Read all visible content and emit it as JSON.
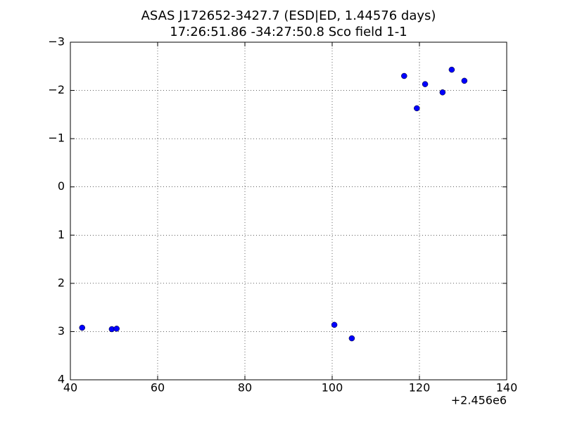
{
  "chart_data": {
    "type": "scatter",
    "title": "ASAS J172652-3427.7 (ESD|ED, 1.44576 days)",
    "subtitle": "17:26:51.86 -34:27:50.8 Sco field 1-1",
    "x_offset_label": "+2.456e6",
    "x": [
      42.7,
      49.5,
      50.6,
      100.5,
      104.5,
      116.5,
      119.4,
      121.3,
      125.3,
      127.4,
      130.3
    ],
    "values": [
      2.92,
      2.95,
      2.94,
      2.86,
      3.14,
      -2.3,
      -1.63,
      -2.13,
      -1.96,
      -2.43,
      -2.2
    ],
    "color": "#0000ff",
    "xlim": [
      40,
      140
    ],
    "xticks": [
      40,
      60,
      80,
      100,
      120,
      140
    ],
    "ylim": [
      4,
      -3
    ],
    "yticks": [
      {
        "value": -3,
        "label": "−3"
      },
      {
        "value": -2,
        "label": "−2"
      },
      {
        "value": -1,
        "label": "−1"
      },
      0,
      1,
      2,
      3,
      4
    ],
    "grid": true
  }
}
